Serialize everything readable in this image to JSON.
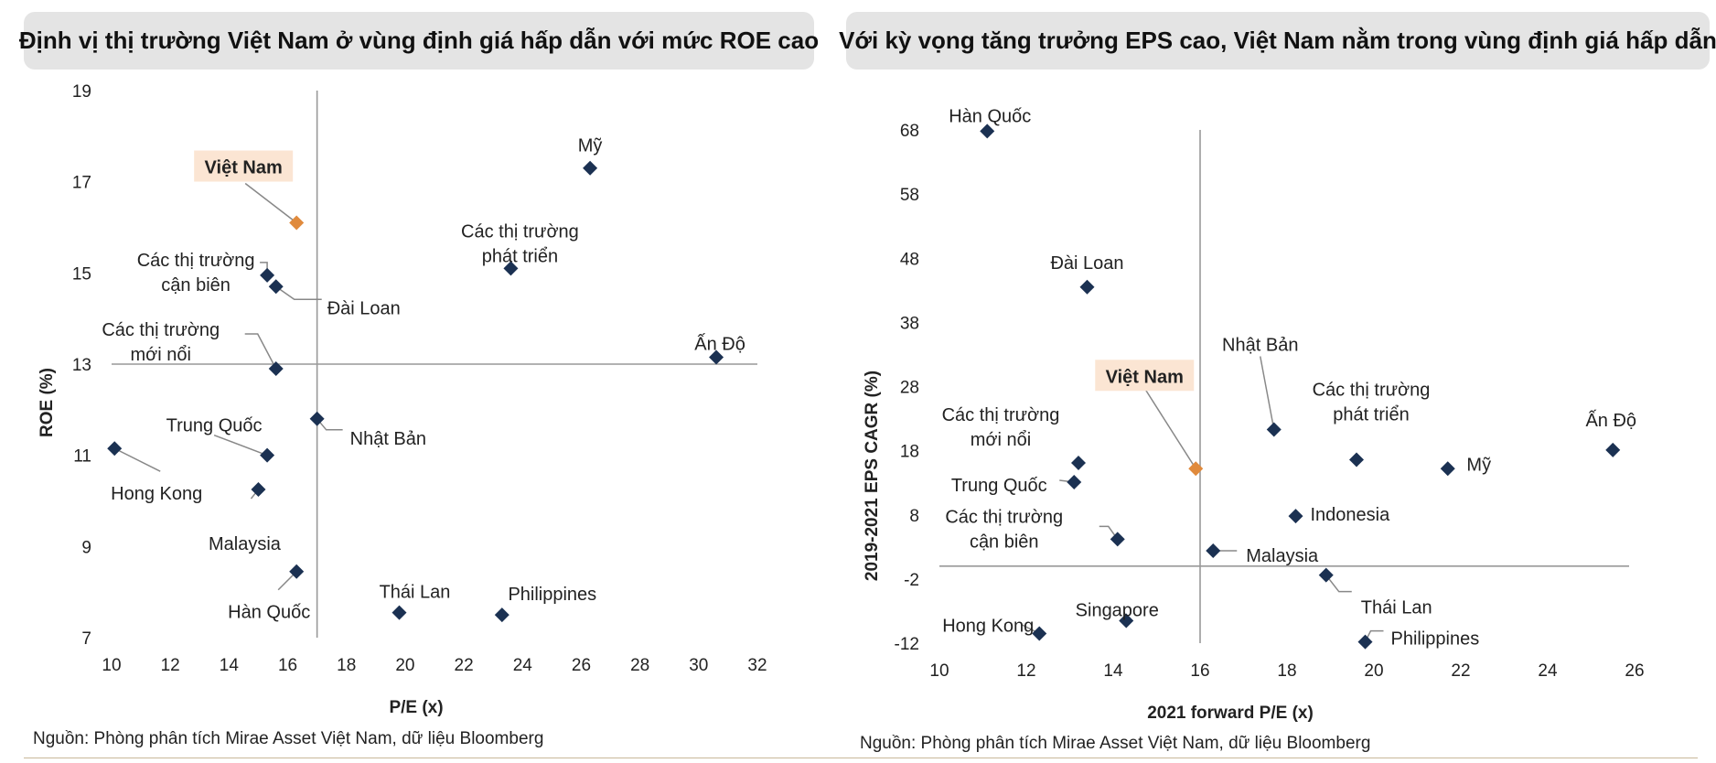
{
  "footer_note": "Nguồn: Phòng phân tích Mirae Asset Việt Nam, dữ liệu Bloomberg",
  "colors": {
    "point": "#1b3152",
    "highlight": "#e08a3c",
    "highlight_bg": "#fbe5d3",
    "axis": "#999999",
    "leader": "#888888"
  },
  "chart_data": [
    {
      "type": "scatter",
      "title": "Định vị thị trường Việt Nam ở vùng định giá hấp dẫn với mức ROE cao",
      "xlabel": "P/E (x)",
      "ylabel": "ROE (%)",
      "xlim": [
        10,
        32
      ],
      "ylim": [
        7,
        19
      ],
      "xticks": [
        10,
        12,
        14,
        16,
        18,
        20,
        22,
        24,
        26,
        28,
        30,
        32
      ],
      "yticks": [
        7,
        9,
        11,
        13,
        15,
        17,
        19
      ],
      "cross_x": 17,
      "cross_y": 13,
      "grid": false,
      "points": [
        {
          "label": "Việt Nam",
          "x": 16.3,
          "y": 16.1,
          "highlight": true
        },
        {
          "label": "Mỹ",
          "x": 26.3,
          "y": 17.3
        },
        {
          "label": "Các thị trường phát triển",
          "x": 23.6,
          "y": 15.1
        },
        {
          "label": "Các thị trường cận biên",
          "x": 15.3,
          "y": 14.95
        },
        {
          "label": "Đài Loan",
          "x": 15.6,
          "y": 14.7
        },
        {
          "label": "Ấn Độ",
          "x": 30.6,
          "y": 13.15
        },
        {
          "label": "Các thị trường mới nổi",
          "x": 15.6,
          "y": 12.9
        },
        {
          "label": "Nhật Bản",
          "x": 17.0,
          "y": 11.8
        },
        {
          "label": "Hong Kong",
          "x": 10.1,
          "y": 11.15
        },
        {
          "label": "Trung Quốc",
          "x": 15.3,
          "y": 11.0
        },
        {
          "label": "Malaysia",
          "x": 15.0,
          "y": 10.25
        },
        {
          "label": "Hàn Quốc",
          "x": 16.3,
          "y": 8.45
        },
        {
          "label": "Thái Lan",
          "x": 19.8,
          "y": 7.55
        },
        {
          "label": "Philippines",
          "x": 23.3,
          "y": 7.5
        }
      ]
    },
    {
      "type": "scatter",
      "title": "Với kỳ vọng tăng trưởng EPS cao, Việt Nam nằm trong vùng định giá hấp dẫn",
      "xlabel": "2021 forward P/E (x)",
      "ylabel": "2019-2021 EPS CAGR (%)",
      "xlim": [
        10,
        26
      ],
      "ylim": [
        -12,
        68
      ],
      "xticks": [
        10,
        12,
        14,
        16,
        18,
        20,
        22,
        24,
        26
      ],
      "yticks": [
        -12,
        -2,
        8,
        18,
        28,
        38,
        48,
        58,
        68
      ],
      "cross_x": 16,
      "cross_y": 0,
      "grid": false,
      "points": [
        {
          "label": "Hàn Quốc",
          "x": 11.1,
          "y": 67.8
        },
        {
          "label": "Đài Loan",
          "x": 13.4,
          "y": 43.5
        },
        {
          "label": "Nhật Bản",
          "x": 17.7,
          "y": 21.3
        },
        {
          "label": "Việt Nam",
          "x": 15.9,
          "y": 15.2,
          "highlight": true
        },
        {
          "label": "Các thị trường mới nổi",
          "x": 13.2,
          "y": 16.1
        },
        {
          "label": "Trung Quốc",
          "x": 13.1,
          "y": 13.1
        },
        {
          "label": "Các thị trường phát triển",
          "x": 19.6,
          "y": 16.6
        },
        {
          "label": "Mỹ",
          "x": 21.7,
          "y": 15.2
        },
        {
          "label": "Ấn Độ",
          "x": 25.5,
          "y": 18.1
        },
        {
          "label": "Indonesia",
          "x": 18.2,
          "y": 7.8
        },
        {
          "label": "Các thị trường cận biên",
          "x": 14.1,
          "y": 4.2
        },
        {
          "label": "Malaysia",
          "x": 16.3,
          "y": 2.4
        },
        {
          "label": "Thái Lan",
          "x": 18.9,
          "y": -1.4
        },
        {
          "label": "Hong Kong",
          "x": 12.3,
          "y": -10.5
        },
        {
          "label": "Singapore",
          "x": 14.3,
          "y": -8.5
        },
        {
          "label": "Philippines",
          "x": 19.8,
          "y": -11.8
        }
      ]
    }
  ]
}
